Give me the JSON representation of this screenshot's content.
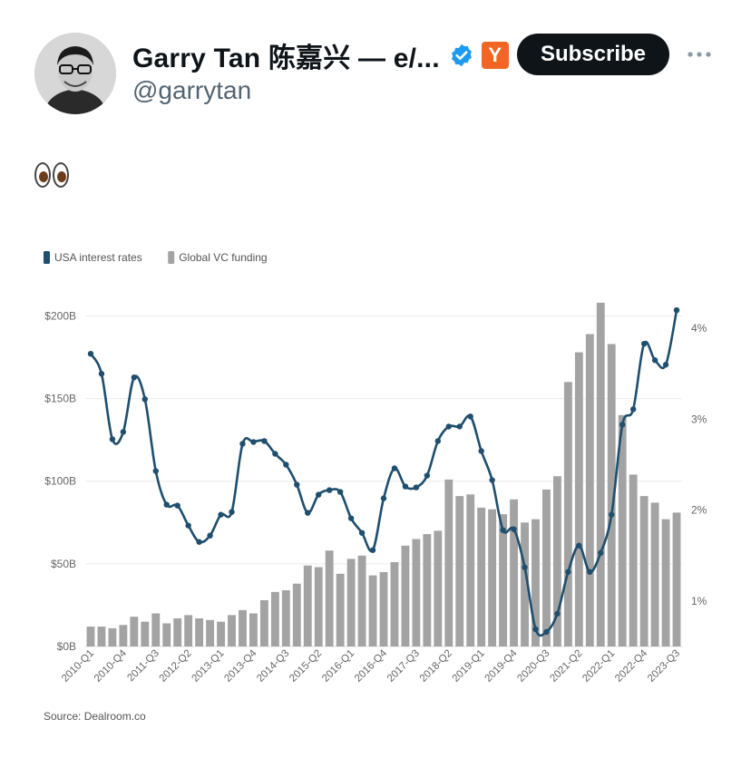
{
  "profile": {
    "name": "Garry Tan 陈嘉兴 — e/...",
    "handle": "@garrytan",
    "badge_letter": "Y",
    "subscribe_label": "Subscribe"
  },
  "tweet": {
    "text_icon": "eyes-emoji"
  },
  "colors": {
    "rate": "#1f4e6e",
    "vc": "#a3a3a3",
    "subscribe_bg": "#0f1419",
    "yc": "#f26522",
    "verified": "#1d9bf0"
  },
  "chart_data": {
    "type": "bar+line",
    "legend": [
      "USA interest rates",
      "Global VC funding"
    ],
    "legend_position": "top-left",
    "source": "Source: Dealroom.co",
    "x_tick_labels": [
      "2010-Q1",
      "2010-Q4",
      "2011-Q3",
      "2012-Q2",
      "2013-Q1",
      "2013-Q4",
      "2014-Q3",
      "2015-Q2",
      "2016-Q1",
      "2016-Q4",
      "2017-Q3",
      "2018-Q2",
      "2019-Q1",
      "2019-Q4",
      "2020-Q3",
      "2021-Q2",
      "2022-Q1",
      "2022-Q4",
      "2023-Q3"
    ],
    "y_left": {
      "ticks": [
        0,
        50,
        100,
        150,
        200
      ],
      "tick_labels": [
        "$0B",
        "$50B",
        "$100B",
        "$150B",
        "$200B"
      ],
      "range": [
        0,
        220
      ]
    },
    "y_right": {
      "ticks": [
        1,
        2,
        3,
        4
      ],
      "tick_labels": [
        "1%",
        "2%",
        "3%",
        "4%"
      ],
      "range": [
        0.5,
        4.5
      ]
    },
    "grid": true,
    "series": [
      {
        "name": "Global VC funding",
        "kind": "bar",
        "axis": "left",
        "values": [
          12,
          12,
          11,
          13,
          18,
          15,
          20,
          14,
          17,
          19,
          17,
          16,
          15,
          19,
          22,
          20,
          28,
          33,
          34,
          38,
          49,
          48,
          58,
          44,
          53,
          55,
          43,
          45,
          51,
          61,
          65,
          68,
          70,
          101,
          91,
          92,
          84,
          83,
          80,
          89,
          75,
          77,
          95,
          103,
          160,
          178,
          189,
          208,
          183,
          140,
          104,
          91,
          87,
          77,
          81
        ]
      },
      {
        "name": "USA interest rates",
        "kind": "line",
        "axis": "right",
        "values": [
          3.72,
          3.5,
          2.78,
          2.86,
          3.46,
          3.22,
          2.43,
          2.06,
          2.05,
          1.83,
          1.65,
          1.72,
          1.95,
          1.98,
          2.73,
          2.75,
          2.76,
          2.62,
          2.5,
          2.28,
          1.97,
          2.17,
          2.22,
          2.2,
          1.91,
          1.75,
          1.56,
          2.13,
          2.46,
          2.26,
          2.25,
          2.38,
          2.76,
          2.92,
          2.92,
          3.03,
          2.65,
          2.33,
          1.78,
          1.79,
          1.37,
          0.69,
          0.66,
          0.86,
          1.32,
          1.61,
          1.32,
          1.53,
          1.95,
          2.94,
          3.11,
          3.83,
          3.65,
          3.6,
          4.2
        ]
      }
    ]
  }
}
